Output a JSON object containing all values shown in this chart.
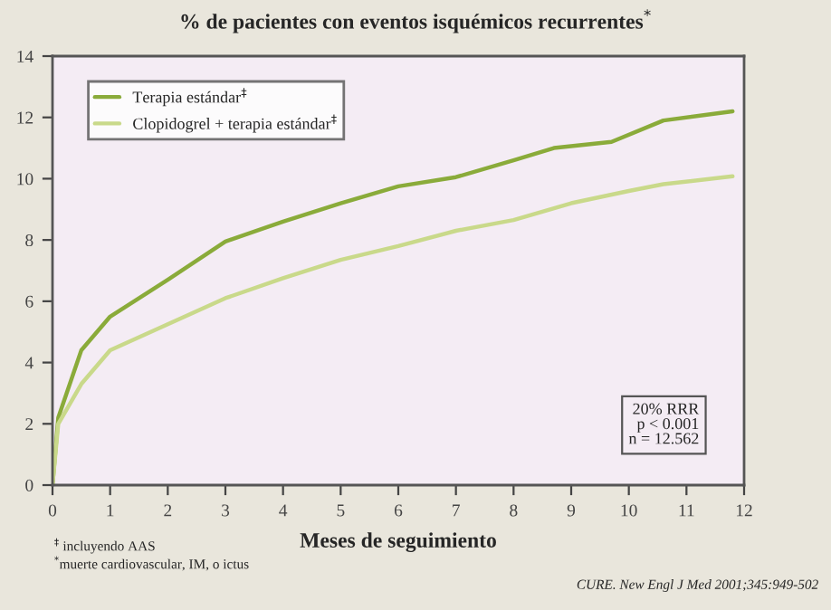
{
  "chart_data": {
    "type": "line",
    "title": "% de pacientes con eventos isquémicos recurrentes$^{*}$",
    "xlabel": "Meses de seguimiento",
    "xlim": [
      0,
      12
    ],
    "xticks": [
      0,
      1,
      2,
      3,
      4,
      5,
      6,
      7,
      8,
      9,
      10,
      11,
      12
    ],
    "ylim": [
      0,
      14
    ],
    "yticks": [
      0,
      2,
      4,
      6,
      8,
      10,
      12,
      14
    ],
    "series": [
      {
        "name": "Terapia estándar$^{‡}$",
        "color": "#8aab3a",
        "x": [
          0,
          0.1,
          0.5,
          1,
          2,
          3,
          4,
          5,
          6,
          7,
          8,
          8.7,
          9.7,
          10.6,
          11.8
        ],
        "values": [
          0,
          2.2,
          4.4,
          5.5,
          6.7,
          7.95,
          8.6,
          9.2,
          9.75,
          10.05,
          10.6,
          11.0,
          11.2,
          11.9,
          12.2
        ]
      },
      {
        "name": "Clopidogrel + terapia estándar$^{‡}$",
        "color": "#c9d98a",
        "x": [
          0,
          0.1,
          0.5,
          1,
          2,
          3,
          4,
          5,
          6,
          7,
          8,
          9,
          10,
          10.6,
          11.8
        ],
        "values": [
          0,
          2.0,
          3.3,
          4.4,
          5.25,
          6.1,
          6.75,
          7.35,
          7.8,
          8.3,
          8.65,
          9.2,
          9.6,
          9.82,
          10.08
        ]
      }
    ],
    "legend": "top left",
    "grid": false,
    "marker": "none",
    "line_style": "solid",
    "annotations": [
      "20% RRR\np < 0.001\nn = 12.562",
      "$^{‡}$ incluyendo AAS",
      "$^{*}$muerte cardiovascular, IM, o ictus",
      "CURE. New Engl J Med 2001;345:949-502"
    ]
  }
}
